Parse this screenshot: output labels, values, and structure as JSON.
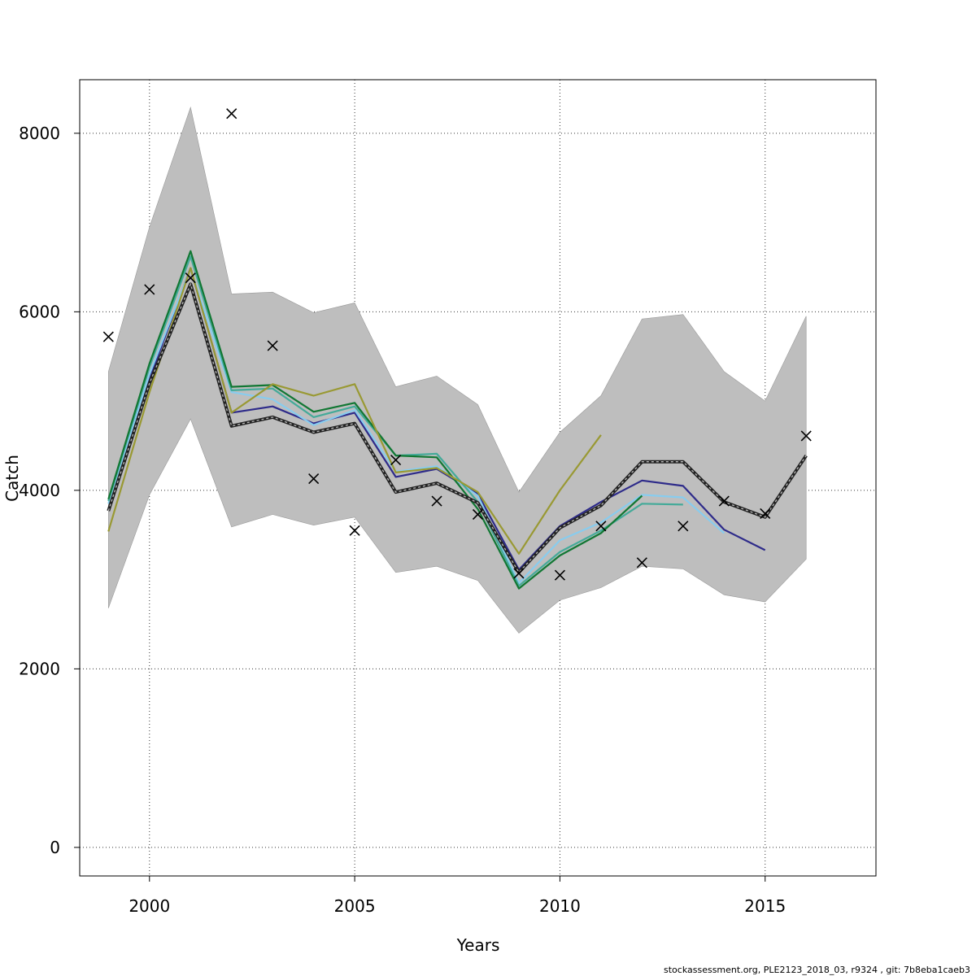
{
  "chart_data": {
    "type": "line",
    "xlabel": "Years",
    "ylabel": "Catch",
    "xlim": [
      1998.3,
      2017.7
    ],
    "ylim": [
      -320,
      8600
    ],
    "x_ticks": [
      2000,
      2005,
      2010,
      2015
    ],
    "y_ticks": [
      0,
      2000,
      4000,
      6000,
      8000
    ],
    "grid": true,
    "band": {
      "color": "#bebebe",
      "x": [
        1999,
        2000,
        2001,
        2002,
        2003,
        2004,
        2005,
        2006,
        2007,
        2008,
        2009,
        2010,
        2011,
        2012,
        2013,
        2014,
        2015,
        2016
      ],
      "lower": [
        2680,
        3950,
        4800,
        3590,
        3730,
        3610,
        3700,
        3080,
        3150,
        2990,
        2400,
        2770,
        2910,
        3150,
        3120,
        2830,
        2750,
        3230
      ],
      "upper": [
        5330,
        6950,
        8290,
        6200,
        6220,
        5990,
        6100,
        5160,
        5280,
        4960,
        3980,
        4650,
        5060,
        5920,
        5970,
        5330,
        5000,
        5950
      ]
    },
    "series": [
      {
        "color": "#2e2b8a",
        "dashed": false,
        "x": [
          1999,
          2000,
          2001,
          2002,
          2003,
          2004,
          2005,
          2006,
          2007,
          2008,
          2009,
          2010,
          2011,
          2012,
          2013,
          2014,
          2015
        ],
        "values": [
          3780,
          5250,
          6490,
          4870,
          4940,
          4750,
          4870,
          4150,
          4240,
          3960,
          3110,
          3600,
          3870,
          4110,
          4050,
          3560,
          3330
        ]
      },
      {
        "color": "#88ccee",
        "dashed": false,
        "x": [
          1999,
          2000,
          2001,
          2002,
          2003,
          2004,
          2005,
          2006,
          2007,
          2008,
          2009,
          2010,
          2011,
          2012,
          2013,
          2014
        ],
        "values": [
          3850,
          5300,
          6480,
          5100,
          5020,
          4730,
          4900,
          4210,
          4270,
          3940,
          2960,
          3440,
          3640,
          3950,
          3920,
          3520
        ]
      },
      {
        "color": "#44aa99",
        "dashed": false,
        "x": [
          1999,
          2000,
          2001,
          2002,
          2003,
          2004,
          2005,
          2006,
          2007,
          2008,
          2009,
          2010,
          2011,
          2012,
          2013
        ],
        "values": [
          3880,
          5380,
          6620,
          5120,
          5140,
          4820,
          4940,
          4390,
          4410,
          3870,
          2930,
          3310,
          3550,
          3850,
          3840
        ]
      },
      {
        "color": "#117733",
        "dashed": false,
        "x": [
          1999,
          2000,
          2001,
          2002,
          2003,
          2004,
          2005,
          2006,
          2007,
          2008,
          2009,
          2010,
          2011,
          2012
        ],
        "values": [
          3900,
          5420,
          6680,
          5160,
          5180,
          4880,
          4980,
          4390,
          4370,
          3790,
          2900,
          3270,
          3520,
          3940
        ]
      },
      {
        "color": "#999933",
        "dashed": false,
        "x": [
          1999,
          2000,
          2001,
          2002,
          2003,
          2004,
          2005,
          2006,
          2007,
          2008,
          2009,
          2010,
          2011
        ],
        "values": [
          3540,
          5100,
          6490,
          4870,
          5190,
          5060,
          5190,
          4200,
          4250,
          3980,
          3290,
          4000,
          4620
        ]
      },
      {
        "color": "#222222",
        "dashed": true,
        "x": [
          1999,
          2000,
          2001,
          2002,
          2003,
          2004,
          2005,
          2006,
          2007,
          2008,
          2009,
          2010,
          2011,
          2012,
          2013,
          2014,
          2015,
          2016
        ],
        "values": [
          3770,
          5200,
          6310,
          4720,
          4820,
          4650,
          4750,
          3980,
          4080,
          3860,
          3080,
          3580,
          3830,
          4320,
          4320,
          3870,
          3700,
          4390
        ]
      }
    ],
    "observed": {
      "marker": "×",
      "x": [
        1999,
        2000,
        2001,
        2002,
        2003,
        2004,
        2005,
        2006,
        2007,
        2008,
        2009,
        2010,
        2011,
        2012,
        2013,
        2014,
        2015,
        2016
      ],
      "values": [
        5720,
        6250,
        6380,
        8220,
        5620,
        4130,
        3550,
        4340,
        3880,
        3730,
        3070,
        3050,
        3600,
        3190,
        3600,
        3880,
        3740,
        4610
      ]
    }
  },
  "footer": "stockassessment.org, PLE2123_2018_03, r9324 , git: 7b8eba1caeb3"
}
